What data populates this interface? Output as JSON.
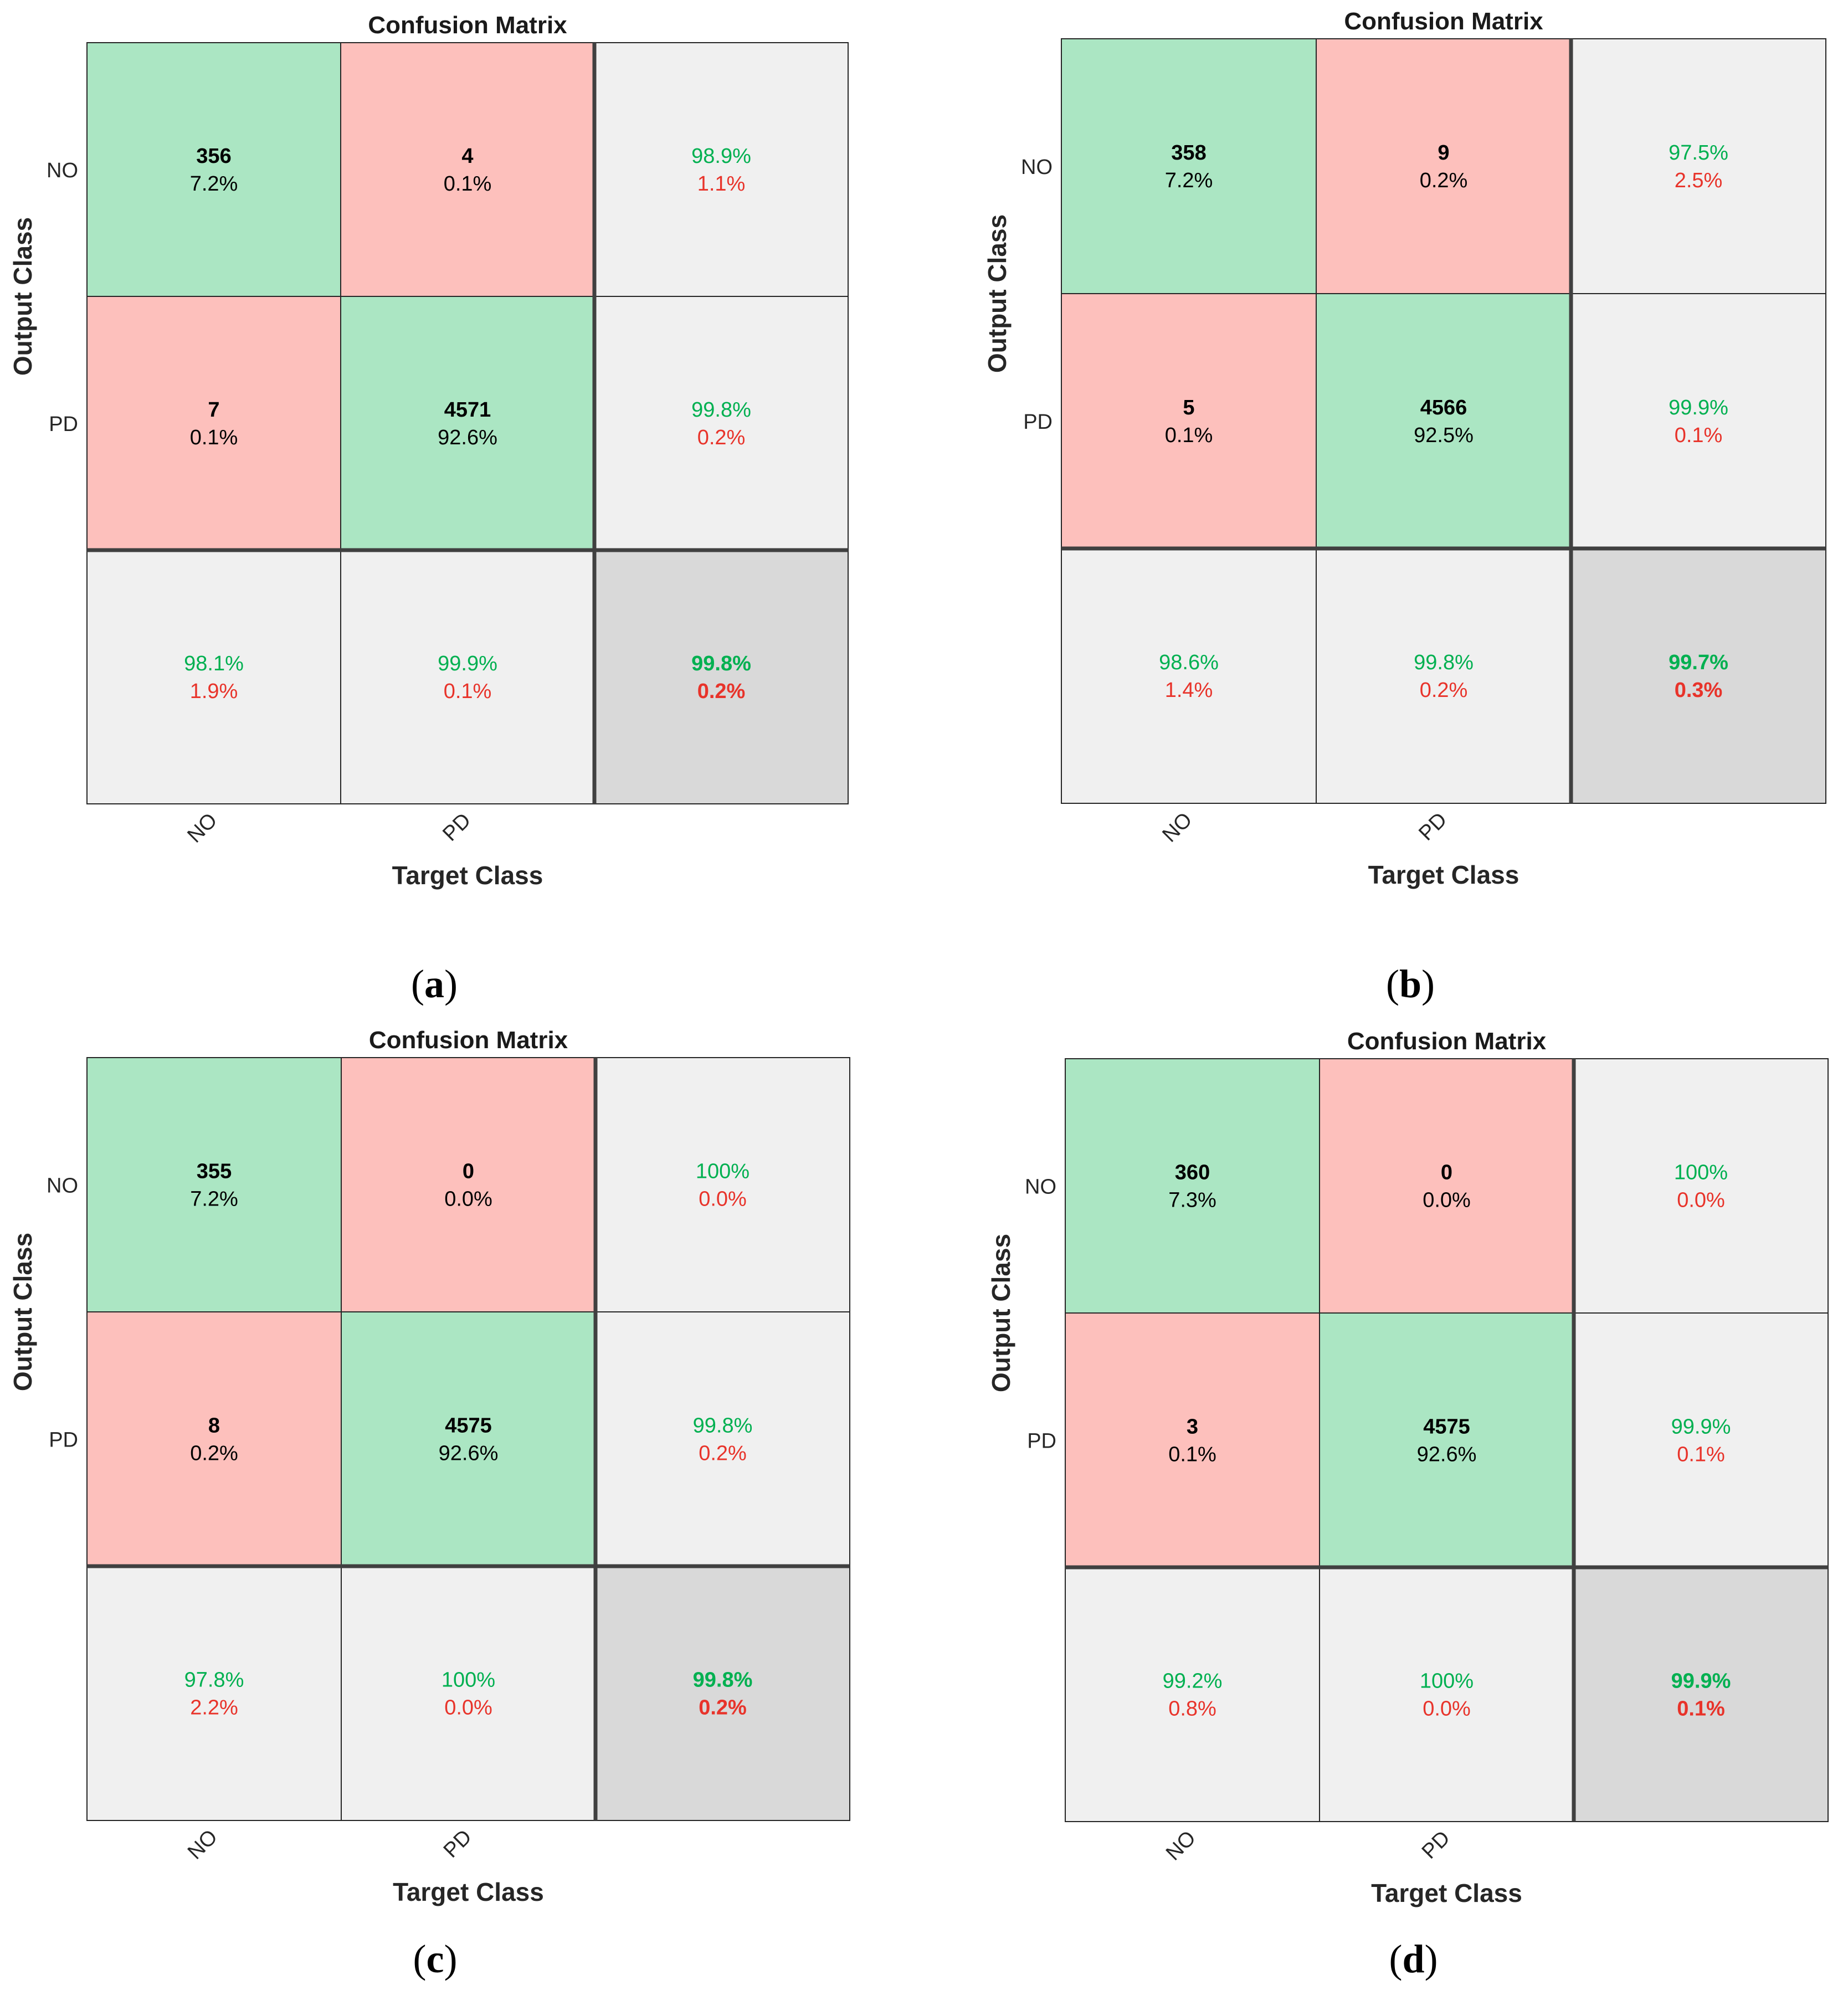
{
  "chart_data": [
    {
      "type": "heatmap",
      "id": "a",
      "title": "Confusion Matrix",
      "xlabel": "Target Class",
      "ylabel": "Output Class",
      "classes": [
        "NO",
        "PD"
      ],
      "counts": [
        [
          356,
          4
        ],
        [
          7,
          4571
        ]
      ],
      "cell_percents": [
        [
          "7.2%",
          "0.1%"
        ],
        [
          "0.1%",
          "92.6%"
        ]
      ],
      "row_summary": [
        [
          "98.9%",
          "1.1%"
        ],
        [
          "99.8%",
          "0.2%"
        ]
      ],
      "col_summary": [
        [
          "98.1%",
          "1.9%"
        ],
        [
          "99.9%",
          "0.1%"
        ]
      ],
      "overall": [
        "99.8%",
        "0.2%"
      ],
      "caption_letter": "a"
    },
    {
      "type": "heatmap",
      "id": "b",
      "title": "Confusion Matrix",
      "xlabel": "Target Class",
      "ylabel": "Output Class",
      "classes": [
        "NO",
        "PD"
      ],
      "counts": [
        [
          358,
          9
        ],
        [
          5,
          4566
        ]
      ],
      "cell_percents": [
        [
          "7.2%",
          "0.2%"
        ],
        [
          "0.1%",
          "92.5%"
        ]
      ],
      "row_summary": [
        [
          "97.5%",
          "2.5%"
        ],
        [
          "99.9%",
          "0.1%"
        ]
      ],
      "col_summary": [
        [
          "98.6%",
          "1.4%"
        ],
        [
          "99.8%",
          "0.2%"
        ]
      ],
      "overall": [
        "99.7%",
        "0.3%"
      ],
      "caption_letter": "b"
    },
    {
      "type": "heatmap",
      "id": "c",
      "title": "Confusion Matrix",
      "xlabel": "Target Class",
      "ylabel": "Output Class",
      "classes": [
        "NO",
        "PD"
      ],
      "counts": [
        [
          355,
          0
        ],
        [
          8,
          4575
        ]
      ],
      "cell_percents": [
        [
          "7.2%",
          "0.0%"
        ],
        [
          "0.2%",
          "92.6%"
        ]
      ],
      "row_summary": [
        [
          "100%",
          "0.0%"
        ],
        [
          "99.8%",
          "0.2%"
        ]
      ],
      "col_summary": [
        [
          "97.8%",
          "2.2%"
        ],
        [
          "100%",
          "0.0%"
        ]
      ],
      "overall": [
        "99.8%",
        "0.2%"
      ],
      "caption_letter": "c"
    },
    {
      "type": "heatmap",
      "id": "d",
      "title": "Confusion Matrix",
      "xlabel": "Target Class",
      "ylabel": "Output Class",
      "classes": [
        "NO",
        "PD"
      ],
      "counts": [
        [
          360,
          0
        ],
        [
          3,
          4575
        ]
      ],
      "cell_percents": [
        [
          "7.3%",
          "0.0%"
        ],
        [
          "0.1%",
          "92.6%"
        ]
      ],
      "row_summary": [
        [
          "100%",
          "0.0%"
        ],
        [
          "99.9%",
          "0.1%"
        ]
      ],
      "col_summary": [
        [
          "99.2%",
          "0.8%"
        ],
        [
          "100%",
          "0.0%"
        ]
      ],
      "overall": [
        "99.9%",
        "0.1%"
      ],
      "caption_letter": "d"
    }
  ],
  "colors": {
    "correct": "#abe6c3",
    "incorrect": "#fdc0bc",
    "summary": "#f0f0f0",
    "overall": "#d9d9d9",
    "grid": "#262626",
    "good_text": "#00b050",
    "bad_text": "#e8332a"
  }
}
